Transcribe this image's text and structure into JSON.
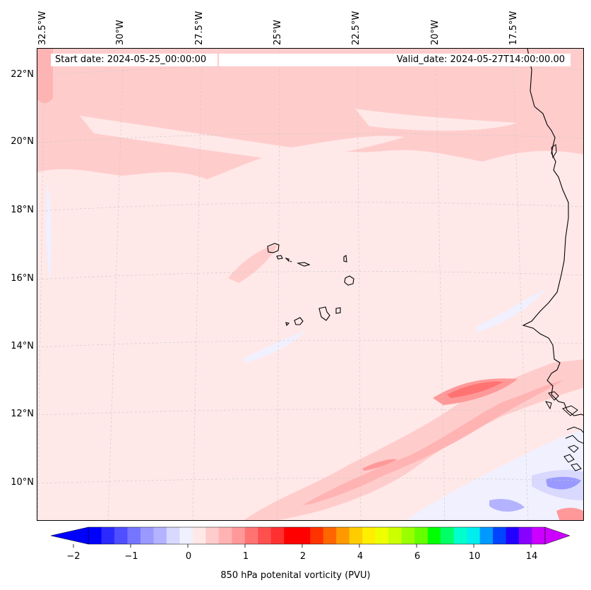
{
  "map": {
    "start_date": "Start date: 2024-05-25_00:00:00",
    "valid_date": "Valid_date: 2024-05-27T14:00:00.00",
    "lat_labels": [
      "22°N",
      "20°N",
      "18°N",
      "16°N",
      "14°N",
      "12°N",
      "10°N"
    ],
    "lon_labels": [
      "32.5°W",
      "30°W",
      "27.5°W",
      "25°W",
      "22.5°W",
      "20°W",
      "17.5°W"
    ],
    "features": [
      "Cabo Verde islands",
      "West African coastline"
    ]
  },
  "colorbar": {
    "label": "850 hPa potenital vorticity (PVU)",
    "tick_labels": [
      "−2",
      "−1",
      "0",
      "1",
      "2",
      "4",
      "6",
      "10",
      "14"
    ],
    "colors": [
      "#0000ff",
      "#2a2aff",
      "#4f4fff",
      "#7575ff",
      "#9999ff",
      "#b3b3ff",
      "#d9d9ff",
      "#f0f0ff",
      "#ffe8e8",
      "#ffcccc",
      "#ffb3b3",
      "#ff9999",
      "#ff7373",
      "#ff5050",
      "#ff3030",
      "#ff0000",
      "#ff0000",
      "#ff3300",
      "#ff6600",
      "#ff9900",
      "#ffcc00",
      "#ffee00",
      "#eeff00",
      "#ccff00",
      "#99ff00",
      "#66ff00",
      "#00ff00",
      "#00ff66",
      "#00ffcc",
      "#00eeee",
      "#0099ff",
      "#0044ff",
      "#2200ff",
      "#8800ff",
      "#cc00ff"
    ],
    "low_extend_color": "#0000ff",
    "high_extend_color": "#cc00ff"
  }
}
